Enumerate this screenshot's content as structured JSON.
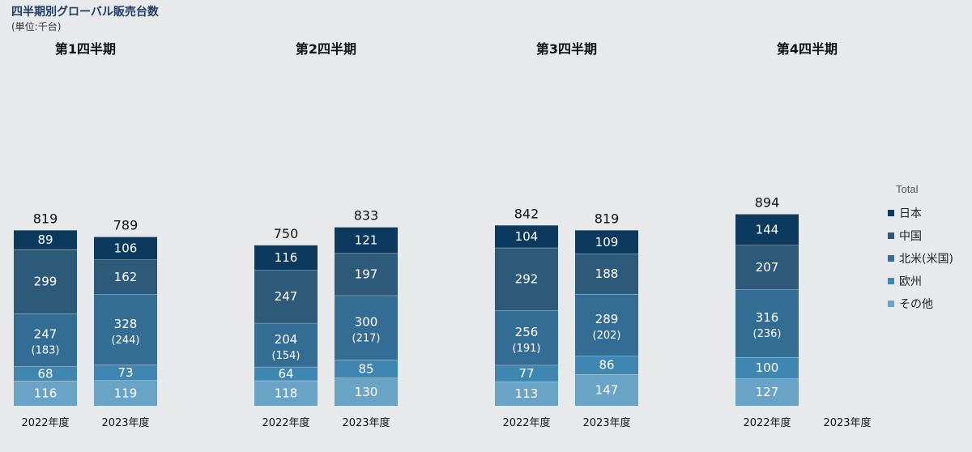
{
  "header": {
    "title": "四半期別グローバル販売台数",
    "unit": "(単位:千台)"
  },
  "colors": {
    "日本": "#0b3a5e",
    "中国": "#2e5a7a",
    "北米(米国)": "#336d93",
    "欧州": "#3f86b0",
    "その他": "#69a3c6"
  },
  "legend": {
    "title": "Total",
    "items": [
      "日本",
      "中国",
      "北米(米国)",
      "欧州",
      "その他"
    ]
  },
  "chart_data": {
    "type": "bar",
    "stacked": true,
    "quarters": [
      "第1四半期",
      "第2四半期",
      "第3四半期",
      "第4四半期"
    ],
    "categories": [
      "2022年度",
      "2023年度"
    ],
    "series": [
      {
        "name": "その他",
        "values": [
          [
            116,
            119
          ],
          [
            118,
            130
          ],
          [
            113,
            147
          ],
          [
            127,
            null
          ]
        ]
      },
      {
        "name": "欧州",
        "values": [
          [
            68,
            73
          ],
          [
            64,
            85
          ],
          [
            77,
            86
          ],
          [
            100,
            null
          ]
        ]
      },
      {
        "name": "北米(米国)",
        "values": [
          [
            247,
            328
          ],
          [
            204,
            300
          ],
          [
            256,
            289
          ],
          [
            316,
            null
          ]
        ],
        "us_values": [
          [
            "(183)",
            "(244)"
          ],
          [
            "(154)",
            "(217)"
          ],
          [
            "(191)",
            "(202)"
          ],
          [
            "(236)",
            null
          ]
        ]
      },
      {
        "name": "中国",
        "values": [
          [
            299,
            162
          ],
          [
            247,
            197
          ],
          [
            292,
            188
          ],
          [
            207,
            null
          ]
        ]
      },
      {
        "name": "日本",
        "values": [
          [
            89,
            106
          ],
          [
            116,
            121
          ],
          [
            104,
            109
          ],
          [
            144,
            null
          ]
        ]
      }
    ],
    "totals": [
      [
        819,
        789
      ],
      [
        750,
        833
      ],
      [
        842,
        819
      ],
      [
        894,
        null
      ]
    ]
  }
}
